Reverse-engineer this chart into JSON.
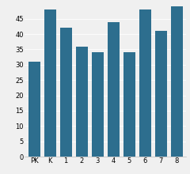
{
  "categories": [
    "PK",
    "K",
    "1",
    "2",
    "3",
    "4",
    "5",
    "6",
    "7",
    "8"
  ],
  "values": [
    31,
    48,
    42,
    36,
    34,
    44,
    34,
    48,
    41,
    49
  ],
  "bar_color": "#2d6e8e",
  "ylim": [
    0,
    50
  ],
  "yticks": [
    0,
    5,
    10,
    15,
    20,
    25,
    30,
    35,
    40,
    45
  ],
  "background_color": "#f0f0f0",
  "tick_fontsize": 6,
  "bar_width": 0.75
}
